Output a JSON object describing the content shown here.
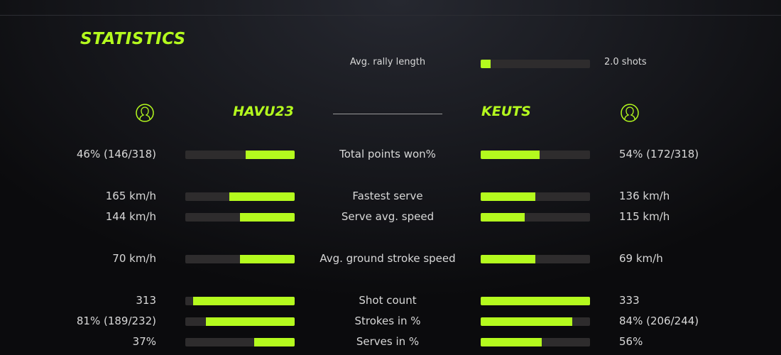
{
  "title": "STATISTICS",
  "accent": "#b4fa1e",
  "rally": {
    "label": "Avg. rally length",
    "value": "2.0 shots",
    "fill": 0.09
  },
  "players": {
    "left": {
      "name": "HAVU23",
      "icon": "user-circle-icon"
    },
    "right": {
      "name": "KEUTS",
      "icon": "user-circle-icon"
    }
  },
  "stats": [
    {
      "label": "Total points won%",
      "left": "46% (146/318)",
      "right": "54% (172/318)",
      "left_fill": 0.45,
      "right_fill": 0.54
    },
    {
      "label": "Fastest serve",
      "left": "165 km/h",
      "right": "136 km/h",
      "left_fill": 0.6,
      "right_fill": 0.5
    },
    {
      "label": "Serve avg. speed",
      "left": "144 km/h",
      "right": "115 km/h",
      "left_fill": 0.5,
      "right_fill": 0.4
    },
    {
      "label": "Avg. ground stroke speed",
      "left": "70 km/h",
      "right": "69 km/h",
      "left_fill": 0.5,
      "right_fill": 0.5
    },
    {
      "label": "Shot count",
      "left": "313",
      "right": "333",
      "left_fill": 0.93,
      "right_fill": 1.0
    },
    {
      "label": "Strokes in %",
      "left": "81% (189/232)",
      "right": "84% (206/244)",
      "left_fill": 0.81,
      "right_fill": 0.84
    },
    {
      "label": "Serves in %",
      "left": "37%",
      "right": "56%",
      "left_fill": 0.37,
      "right_fill": 0.56
    }
  ]
}
